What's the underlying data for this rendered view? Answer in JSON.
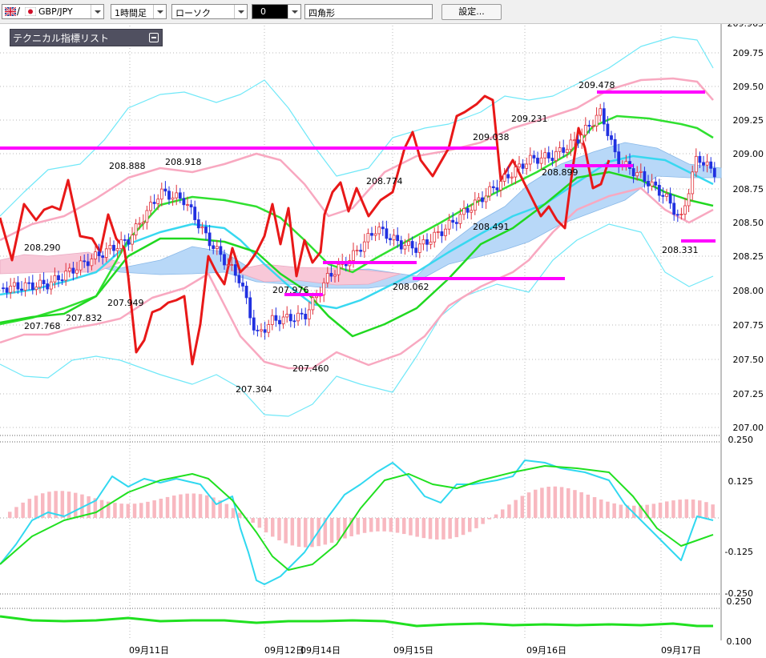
{
  "toolbar": {
    "symbol": "GBP/JPY",
    "timeframe": "1時間足",
    "chart_type": "ローソク",
    "color_value": "0",
    "drawing_tool": "四角形",
    "settings_button": "設定..."
  },
  "indicator_panel": {
    "title": "テクニカル指標リスト"
  },
  "colors": {
    "up_candle": "#e0303a",
    "down_candle": "#2030e0",
    "magenta_line": "#ff00ff",
    "macd_line": "#30d8f0",
    "signal_line": "#20e020",
    "hist": "#f8b8c0",
    "cloud_bull": "#b8d8f8",
    "cloud_bear": "#f8c8d8",
    "red_line": "#e81818",
    "bollinger_inner": "#f8a8c0",
    "bollinger_outer": "#70e8f8"
  },
  "price_axis": [
    "209.963",
    "209.75",
    "209.50",
    "209.25",
    "209.00",
    "208.75",
    "208.50",
    "208.25",
    "208.00",
    "207.75",
    "207.50",
    "207.25",
    "207.00"
  ],
  "macd_axis": [
    "0.250",
    "0.125",
    "-0.125",
    "-0.250"
  ],
  "lower_axis": [
    "0.250",
    "0.100"
  ],
  "date_axis": [
    "09月11日",
    "09月12日",
    "09月14日",
    "09月15日",
    "09月16日",
    "09月17日"
  ],
  "price_labels": [
    "208.888",
    "208.918",
    "208.290",
    "207.949",
    "207.768",
    "207.832",
    "207.976",
    "207.304",
    "207.460",
    "208.774",
    "208.062",
    "209.038",
    "208.491",
    "209.231",
    "208.899",
    "209.478",
    "208.331"
  ]
}
